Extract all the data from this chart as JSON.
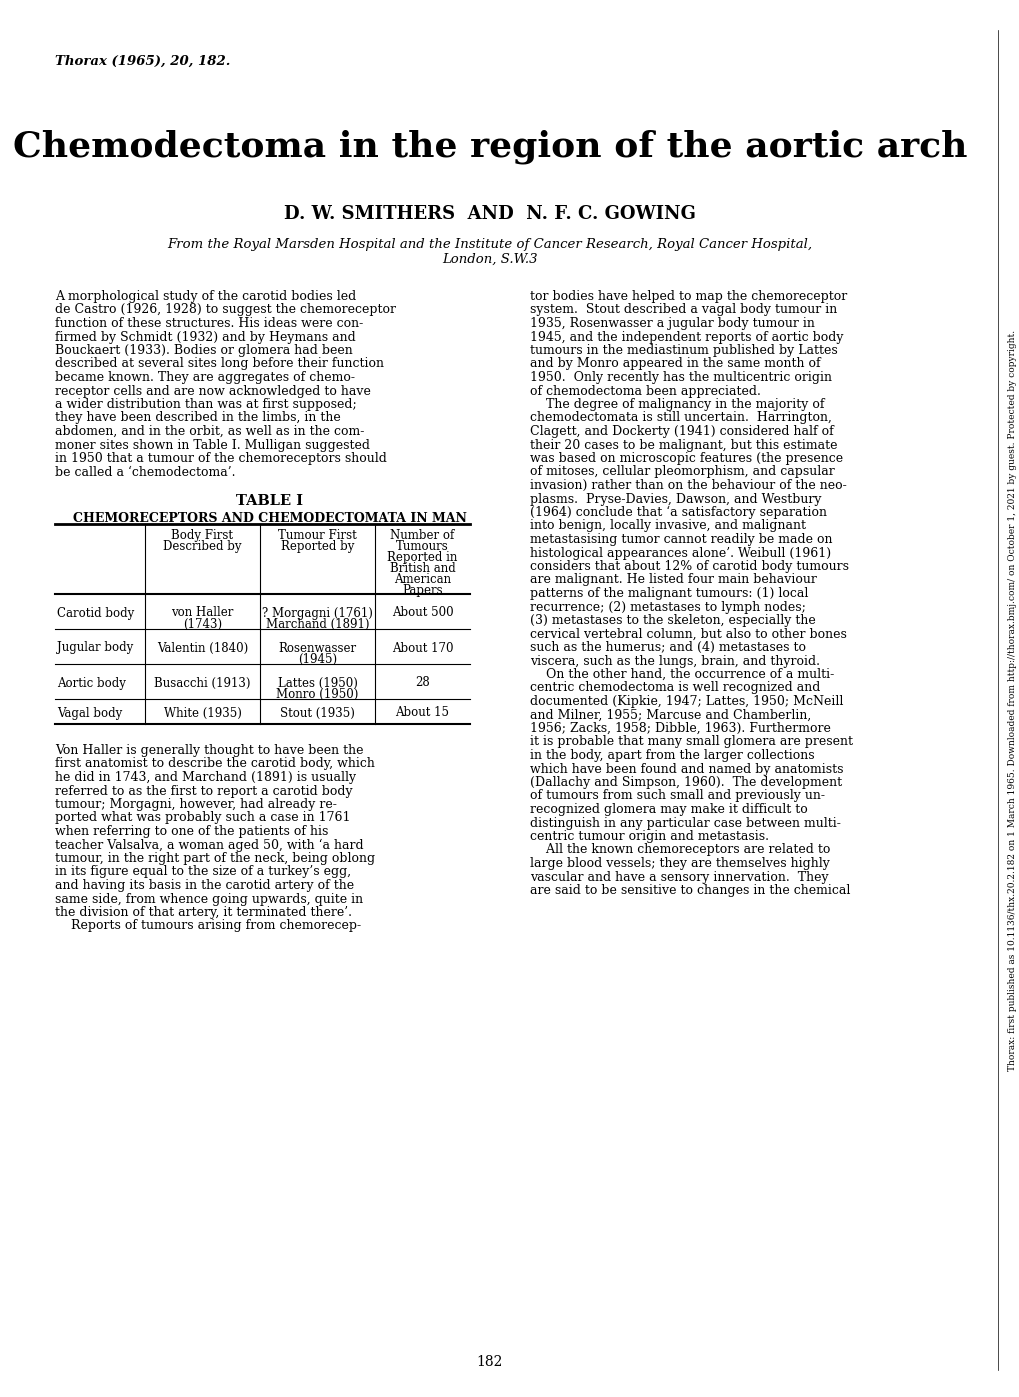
{
  "background_color": "#ffffff",
  "journal_ref": "Thorax (1965), 20, 182.",
  "title": "Chemodectoma in the region of the aortic arch",
  "authors": "D. W. SMITHERS  AND  N. F. C. GOWING",
  "affiliation_line1": "From the Royal Marsden Hospital and the Institute of Cancer Research, Royal Cancer Hospital,",
  "affiliation_line2": "London, S.W.3",
  "table_title": "TABLE I",
  "table_subtitle": "CHEMORECEPTORS AND CHEMODECTOMATA IN MAN",
  "col_headers": [
    "",
    "Body First\nDescribed by",
    "Tumour First\nReported by",
    "Number of\nTumours\nReported in\nBritish and\nAmerican\nPapers"
  ],
  "table_rows": [
    [
      "Carotid body",
      "von Haller\n(1743)",
      "? Morgagni (1761)\nMarchand (1891)",
      "About 500"
    ],
    [
      "Jugular body",
      "Valentin (1840)",
      "Rosenwasser\n(1945)",
      "About 170"
    ],
    [
      "Aortic body",
      "Busacchi (1913)",
      "Lattes (1950)\nMonro (1950)",
      "28"
    ],
    [
      "Vagal body",
      "White (1935)",
      "Stout (1935)",
      "About 15"
    ]
  ],
  "para1_left": "A morphological study of the carotid bodies led de Castro (1926, 1928) to suggest the chemoreceptor function of these structures. His ideas were confirmed by Schmidt (1932) and by Heymans and Bouckaert (1933). Bodies or glomera had been described at several sites long before their function became known. They are aggregates of chemoreceptor cells and are now acknowledged to have a wider distribution than was at first supposed; they have been described in the limbs, in the abdomen, and in the orbit, as well as in the commoner sites shown in Table I. Mulligan suggested in 1950 that a tumour of the chemoreceptors should be called a ‘chemodectoma’.",
  "para1_right": "tor bodies have helped to map the chemoreceptor system.  Stout described a vagal body tumour in 1935, Rosenwasser a jugular body tumour in 1945, and the independent reports of aortic body tumours in the mediastinum published by Lattes and by Monro appeared in the same month of 1950.  Only recently has the multicentric origin of chemodectoma been appreciated.\n    The degree of malignancy in the majority of chemodectomata is still uncertain.  Harrington, Clagett, and Dockerty (1941) considered half of their 20 cases to be malignant, but this estimate was based on microscopic features (the presence of mitoses, cellular pleomorphism, and capsular invasion) rather than on the behaviour of the neoplasms.  Pryse-Davies, Dawson, and Westbury (1964) conclude that ‘a satisfactory separation into benign, locally invasive, and malignant metastasising tumor cannot readily be made on histological appearances alone’. Weibull (1961) considers that about 12% of carotid body tumours are malignant. He listed four main behaviour patterns of the malignant tumours: (1) local recurrence; (2) metastases to lymph nodes; (3) metastases to the skeleton, especially the cervical vertebral column, but also to other bones such as the humerus; and (4) metastases to viscera, such as the lungs, brain, and thyroid.\n    On the other hand, the occurrence of a multicentric chemodectoma is well recognized and documented (Kipkie, 1947; Lattes, 1950; McNeill and Milner, 1955; Marcuse and Chamberlin, 1956; Zacks, 1958; Dibble, 1963). Furthermore it is probable that many small glomera are present in the body, apart from the larger collections which have been found and named by anatomists (Dallachy and Simpson, 1960).  The development of tumours from such small and previously unrecognized glomera may make it difficult to distinguish in any particular case between multicentric tumour origin and metastasis.\n    All the known chemoreceptors are related to large blood vessels; they are themselves highly vascular and have a sensory innervation.  They are said to be sensitive to changes in the chemical",
  "para2_left": "Von Haller is generally thought to have been the first anatomist to describe the carotid body, which he did in 1743, and Marchand (1891) is usually referred to as the first to report a carotid body tumour; Morgagni, however, had already reported what was probably such a case in 1761 when referring to one of the patients of his teacher Valsalva, a woman aged 50, with ‘a hard tumour, in the right part of the neck, being oblong in its figure equal to the size of a turkey’s egg, and having its basis in the carotid artery of the same side, from whence going upwards, quite in the division of that artery, it terminated there’.\n    Reports of tumours arising from chemorecep-",
  "side_text": "Thorax: first published as 10.1136/thx.20.2.182 on 1 March 1965. Downloaded from http://thorax.bmj.com/ on October 1, 2021 by guest. Protected by copyright.",
  "page_number": "182"
}
